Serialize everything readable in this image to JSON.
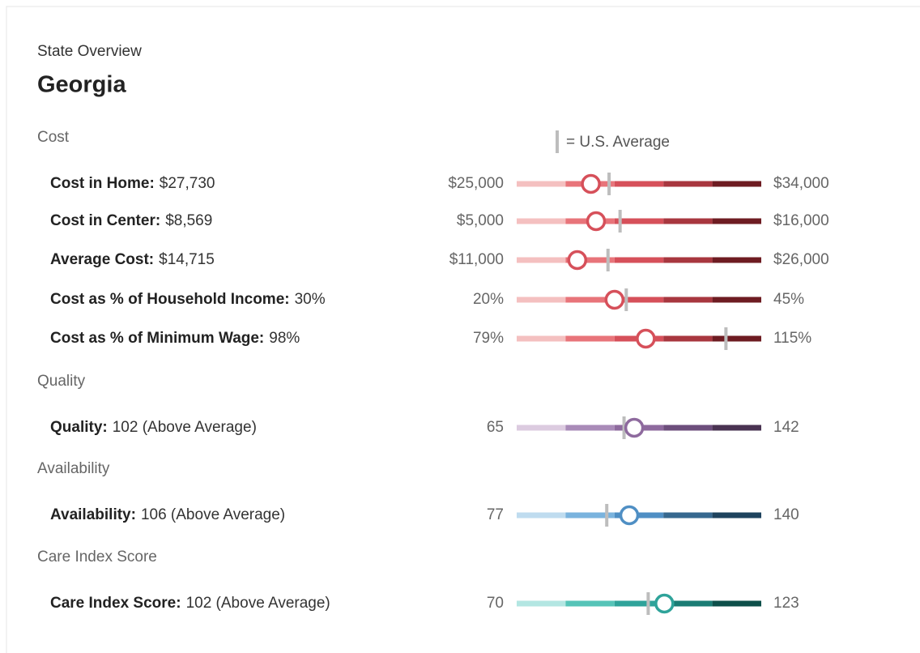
{
  "header": {
    "subtitle": "State Overview",
    "title": "Georgia"
  },
  "legend": "= U.S. Average",
  "sections": [
    {
      "title": "Cost",
      "colors": [
        "#f4c0c0",
        "#e8747a",
        "#d6505a",
        "#a8373f",
        "#6e1c22"
      ],
      "rows": [
        {
          "label": "Cost in Home:",
          "value": {
            "value": 27730,
            "label": "$27,730"
          },
          "min": {
            "value": 25000,
            "label": "$25,000"
          },
          "max": {
            "value": 34000,
            "label": "$34,000"
          },
          "us_average": 28400
        },
        {
          "label": "Cost in Center:",
          "value": {
            "value": 8569,
            "label": "$8,569"
          },
          "min": {
            "value": 5000,
            "label": "$5,000"
          },
          "max": {
            "value": 16000,
            "label": "$16,000"
          },
          "us_average": 9650
        },
        {
          "label": "Average Cost:",
          "value": {
            "value": 14715,
            "label": "$14,715"
          },
          "min": {
            "value": 11000,
            "label": "$11,000"
          },
          "max": {
            "value": 26000,
            "label": "$26,000"
          },
          "us_average": 16600
        },
        {
          "label": "Cost as % of Household Income:",
          "value": {
            "value": 30,
            "label": "30%"
          },
          "min": {
            "value": 20,
            "label": "20%"
          },
          "max": {
            "value": 45,
            "label": "45%"
          },
          "us_average": 31.2
        },
        {
          "label": "Cost as % of Minimum Wage:",
          "value": {
            "value": 98,
            "label": "98%"
          },
          "min": {
            "value": 79,
            "label": "79%"
          },
          "max": {
            "value": 115,
            "label": "115%"
          },
          "us_average": 109.8
        }
      ]
    },
    {
      "title": "Quality",
      "colors": [
        "#dccbe0",
        "#a98bb8",
        "#8e6a9e",
        "#6d4e7c",
        "#4a3352"
      ],
      "rows": [
        {
          "label": "Quality:",
          "value": {
            "value": 102,
            "label": "102 (Above Average)"
          },
          "min": 65,
          "max": 142,
          "us_average": 98.8
        }
      ]
    },
    {
      "title": "Availability",
      "colors": [
        "#bfdcef",
        "#7ab3de",
        "#4f8fc4",
        "#36688f",
        "#1e435e"
      ],
      "rows": [
        {
          "label": "Availability:",
          "value": {
            "value": 106,
            "label": "106 (Above Average)"
          },
          "min": 77,
          "max": 140,
          "us_average": 100.2
        }
      ]
    },
    {
      "title": "Care Index Score",
      "colors": [
        "#b3e6e2",
        "#56c4b8",
        "#2fa39a",
        "#1b7c74",
        "#0d4f4a"
      ],
      "rows": [
        {
          "label": "Care Index Score:",
          "value": {
            "value": 102,
            "label": "102 (Above Average)"
          },
          "min": 70,
          "max": 123,
          "us_average": 98.5
        }
      ]
    }
  ]
}
